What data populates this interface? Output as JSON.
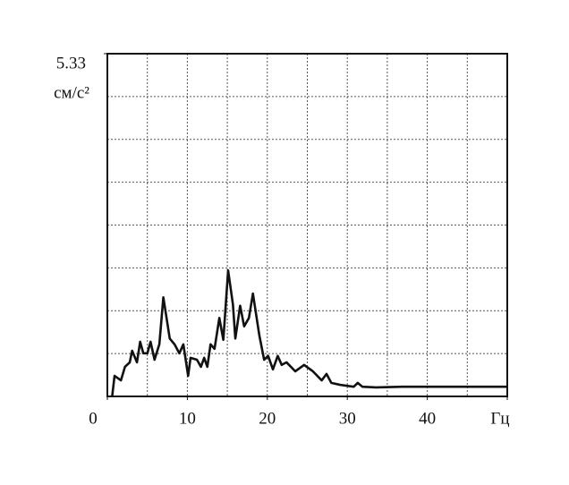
{
  "chart_data": {
    "type": "line",
    "ylabel": "см/с²",
    "x": [
      0.6,
      0.9,
      1.7,
      2.2,
      2.8,
      3.1,
      3.7,
      4.1,
      4.5,
      5.0,
      5.4,
      5.9,
      6.5,
      7.0,
      7.8,
      8.4,
      9.0,
      9.5,
      10.1,
      10.4,
      11.2,
      11.7,
      12.1,
      12.5,
      12.9,
      13.4,
      14.0,
      14.5,
      15.1,
      15.7,
      16.0,
      16.6,
      17.1,
      17.7,
      18.2,
      19.0,
      19.6,
      20.1,
      20.7,
      21.3,
      21.8,
      22.4,
      23.5,
      24.6,
      25.7,
      26.8,
      27.4,
      28.0,
      29.1,
      30.8,
      31.3,
      31.9,
      33.6,
      36.9,
      42.5,
      50
    ],
    "series": [
      {
        "color": "#111111",
        "values": [
          0,
          0.32,
          0.25,
          0.46,
          0.53,
          0.71,
          0.53,
          0.85,
          0.67,
          0.67,
          0.85,
          0.57,
          0.81,
          1.54,
          0.9,
          0.81,
          0.67,
          0.81,
          0.32,
          0.6,
          0.57,
          0.46,
          0.6,
          0.46,
          0.81,
          0.74,
          1.22,
          0.88,
          1.96,
          1.43,
          0.9,
          1.41,
          1.09,
          1.22,
          1.6,
          0.95,
          0.57,
          0.63,
          0.42,
          0.63,
          0.49,
          0.53,
          0.39,
          0.49,
          0.39,
          0.25,
          0.35,
          0.21,
          0.18,
          0.15,
          0.21,
          0.15,
          0.14,
          0.15,
          0.15,
          0.15
        ]
      }
    ],
    "xlim": [
      0,
      50
    ],
    "xticks": [
      0,
      10,
      20,
      30,
      40,
      {
        "value": 50,
        "label": "Гц"
      }
    ],
    "ylim": [
      0,
      5.33
    ],
    "yticks": [
      5.33
    ],
    "grid": true,
    "grid_divisions": {
      "x": 10,
      "y": 8
    }
  }
}
